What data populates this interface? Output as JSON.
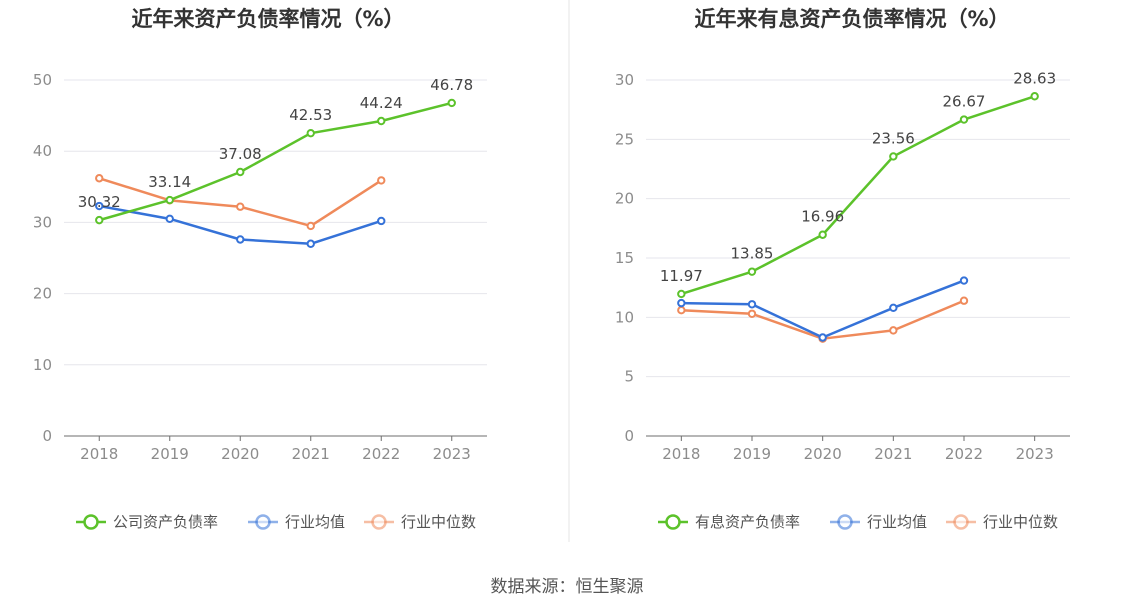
{
  "source": "数据来源：恒生聚源",
  "colors": {
    "green": "#5cc22b",
    "blue": "#3572d8",
    "orange": "#ef8a5b",
    "divider": "#e5e5e5"
  },
  "chart_data": [
    {
      "type": "line",
      "title": "近年来资产负债率情况（%）",
      "categories": [
        "2018",
        "2019",
        "2020",
        "2021",
        "2022",
        "2023"
      ],
      "ylim": [
        0,
        50
      ],
      "yticks": [
        0,
        10,
        20,
        30,
        40,
        50
      ],
      "grid": true,
      "legend_position": "bottom",
      "series": [
        {
          "name": "公司资产负债率",
          "color": "#5cc22b",
          "values": [
            30.32,
            33.14,
            37.08,
            42.53,
            44.24,
            46.78
          ],
          "labels": [
            "30.32",
            "33.14",
            "37.08",
            "42.53",
            "44.24",
            "46.78"
          ]
        },
        {
          "name": "行业均值",
          "color": "#3572d8",
          "values": [
            32.3,
            30.5,
            27.6,
            27.0,
            30.2,
            null
          ]
        },
        {
          "name": "行业中位数",
          "color": "#ef8a5b",
          "values": [
            36.2,
            33.1,
            32.2,
            29.5,
            35.9,
            null
          ]
        }
      ]
    },
    {
      "type": "line",
      "title": "近年来有息资产负债率情况（%）",
      "categories": [
        "2018",
        "2019",
        "2020",
        "2021",
        "2022",
        "2023"
      ],
      "ylim": [
        0,
        30
      ],
      "yticks": [
        0,
        5,
        10,
        15,
        20,
        25,
        30
      ],
      "grid": true,
      "legend_position": "bottom",
      "series": [
        {
          "name": "有息资产负债率",
          "color": "#5cc22b",
          "values": [
            11.97,
            13.85,
            16.96,
            23.56,
            26.67,
            28.63
          ],
          "labels": [
            "11.97",
            "13.85",
            "16.96",
            "23.56",
            "26.67",
            "28.63"
          ]
        },
        {
          "name": "行业均值",
          "color": "#3572d8",
          "values": [
            11.2,
            11.1,
            8.3,
            10.8,
            13.1,
            null
          ]
        },
        {
          "name": "行业中位数",
          "color": "#ef8a5b",
          "values": [
            10.6,
            10.3,
            8.2,
            8.9,
            11.4,
            null
          ]
        }
      ]
    }
  ]
}
